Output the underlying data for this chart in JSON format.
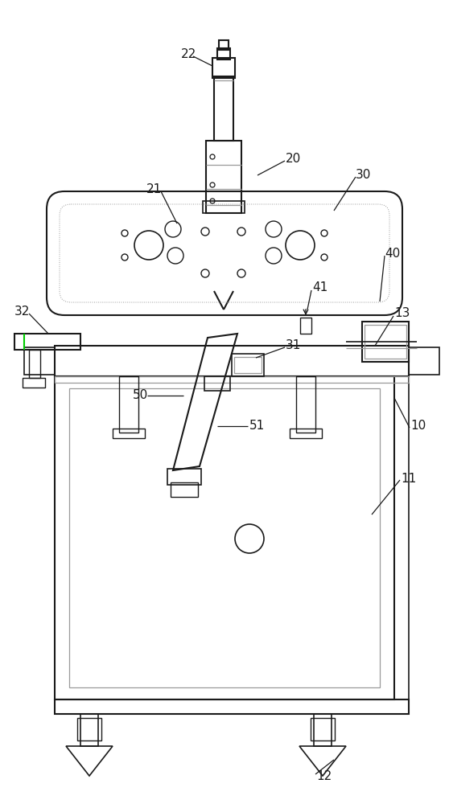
{
  "bg_color": "#ffffff",
  "line_color": "#1a1a1a",
  "gray_color": "#999999",
  "green_color": "#00cc00",
  "figsize": [
    5.58,
    10.0
  ],
  "dpi": 100
}
